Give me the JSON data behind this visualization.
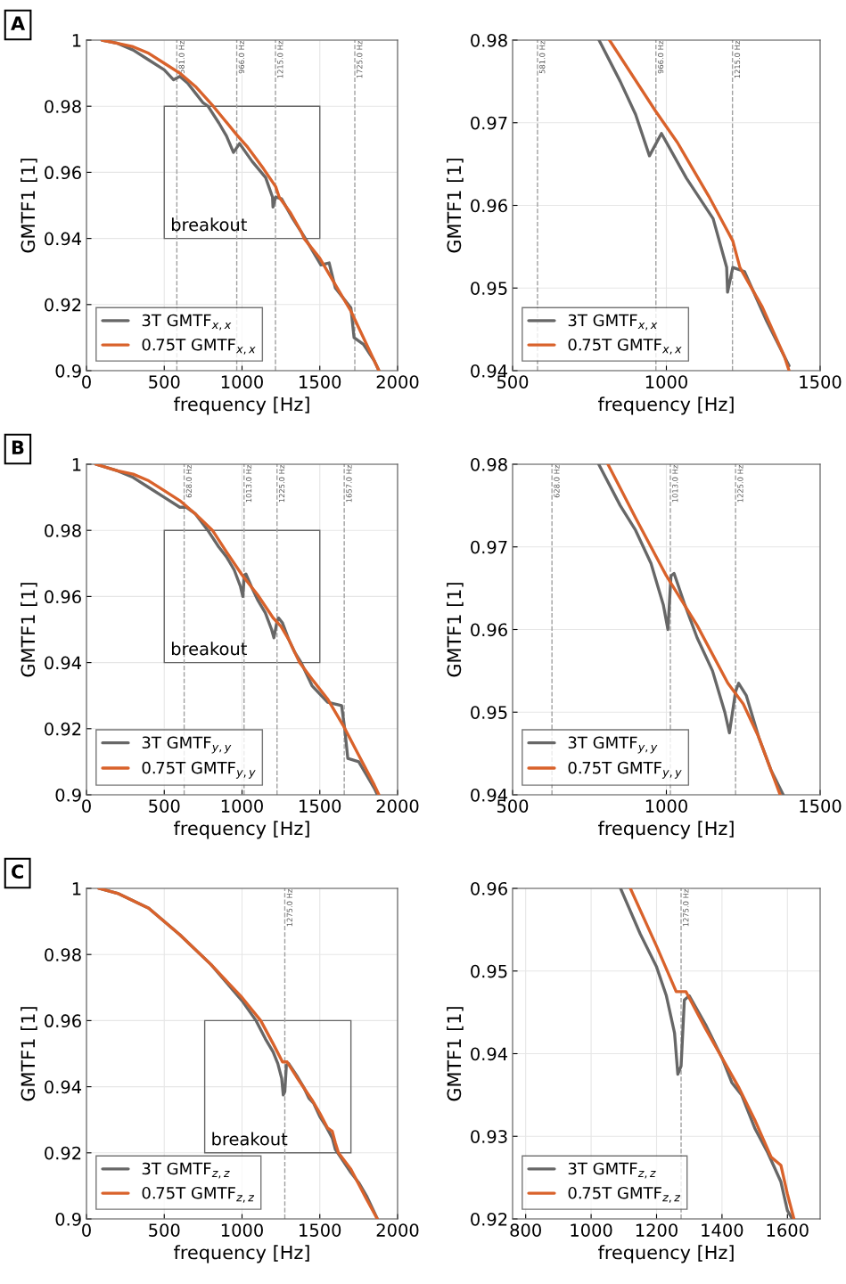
{
  "chart_data": [
    {
      "type": "line",
      "xlabel": "frequency [Hz]",
      "ylabel": "GMTF1 [1]",
      "xlim": [
        0,
        2000
      ],
      "ylim": [
        0.9,
        1
      ],
      "xticks": [
        0,
        500,
        1000,
        1500,
        2000
      ],
      "yticks": [
        0.9,
        0.92,
        0.94,
        0.96,
        0.98,
        1
      ],
      "grid": true,
      "legend": "bottom left",
      "line_style": "solid",
      "marker": "none",
      "annotations": [
        "A",
        "breakout"
      ],
      "ref_lines": [
        {
          "axis": "x",
          "value": 581,
          "label": "581.0 Hz",
          "color": "#a0a0a0",
          "line_style": "dashed"
        },
        {
          "axis": "x",
          "value": 966,
          "label": "966.0 Hz",
          "color": "#a0a0a0",
          "line_style": "dashed"
        },
        {
          "axis": "x",
          "value": 1215,
          "label": "1215.0 Hz",
          "color": "#a0a0a0",
          "line_style": "dashed"
        },
        {
          "axis": "x",
          "value": 1725,
          "label": "1725.0 Hz",
          "color": "#a0a0a0",
          "line_style": "dashed"
        }
      ],
      "series": [
        {
          "name": "3T GMTF$_{x,x}$",
          "color": "#676767",
          "x": [
            100,
            200,
            300,
            400,
            500,
            560,
            600,
            650,
            700,
            750,
            781,
            850,
            900,
            945,
            984,
            1065,
            1152,
            1196,
            1199,
            1216,
            1254,
            1326,
            1399,
            1507,
            1560,
            1600,
            1700,
            1720,
            1780,
            1850,
            1880
          ],
          "values": [
            1,
            0.999,
            0.997,
            0.994,
            0.991,
            0.988,
            0.989,
            0.987,
            0.984,
            0.981,
            0.98,
            0.975,
            0.971,
            0.966,
            0.9687,
            0.9633,
            0.9584,
            0.9525,
            0.9495,
            0.9525,
            0.952,
            0.946,
            0.9406,
            0.932,
            0.9326,
            0.925,
            0.919,
            0.91,
            0.908,
            0.903,
            0.9
          ]
        },
        {
          "name": "0.75T GMTF$_{x,x}$",
          "color": "#d9622b",
          "x": [
            100,
            200,
            300,
            400,
            500,
            600,
            700,
            815,
            965,
            1036,
            1138,
            1216,
            1239,
            1312,
            1384,
            1399,
            1500,
            1600,
            1700,
            1800,
            1880
          ],
          "values": [
            1,
            0.999,
            0.998,
            0.996,
            0.993,
            0.99,
            0.986,
            0.98,
            0.9714,
            0.9676,
            0.9611,
            0.9557,
            0.9525,
            0.9477,
            0.9417,
            0.94,
            0.934,
            0.926,
            0.918,
            0.908,
            0.9
          ]
        }
      ]
    },
    {
      "type": "line",
      "xlabel": "frequency [Hz]",
      "ylabel": "GMTF1 [1]",
      "xlim": [
        500,
        1500
      ],
      "ylim": [
        0.94,
        0.98
      ],
      "xticks": [
        500,
        1000,
        1500
      ],
      "yticks": [
        0.94,
        0.95,
        0.96,
        0.97,
        0.98
      ],
      "grid": true,
      "legend": "bottom left",
      "line_style": "solid",
      "marker": "none",
      "ref_lines": [
        {
          "axis": "x",
          "value": 581,
          "label": "581.0 Hz",
          "color": "#a0a0a0",
          "line_style": "dashed"
        },
        {
          "axis": "x",
          "value": 966,
          "label": "966.0 Hz",
          "color": "#a0a0a0",
          "line_style": "dashed"
        },
        {
          "axis": "x",
          "value": 1215,
          "label": "1215.0 Hz",
          "color": "#a0a0a0",
          "line_style": "dashed"
        }
      ],
      "series": [
        {
          "name": "3T GMTF$_{x,x}$",
          "color": "#676767",
          "x": [
            781,
            850,
            900,
            945,
            984,
            1065,
            1152,
            1196,
            1199,
            1216,
            1254,
            1326,
            1399
          ],
          "values": [
            0.98,
            0.975,
            0.971,
            0.966,
            0.9687,
            0.9633,
            0.9584,
            0.9525,
            0.9495,
            0.9525,
            0.952,
            0.946,
            0.9406
          ]
        },
        {
          "name": "0.75T GMTF$_{x,x}$",
          "color": "#d9622b",
          "x": [
            815,
            965,
            1036,
            1138,
            1216,
            1239,
            1312,
            1384,
            1399
          ],
          "values": [
            0.98,
            0.9714,
            0.9676,
            0.9611,
            0.9557,
            0.9525,
            0.9477,
            0.9417,
            0.94
          ]
        }
      ]
    },
    {
      "type": "line",
      "xlabel": "frequency [Hz]",
      "ylabel": "GMTF1 [1]",
      "xlim": [
        0,
        2000
      ],
      "ylim": [
        0.9,
        1
      ],
      "xticks": [
        0,
        500,
        1000,
        1500,
        2000
      ],
      "yticks": [
        0.9,
        0.92,
        0.94,
        0.96,
        0.98,
        1
      ],
      "grid": true,
      "legend": "bottom left",
      "line_style": "solid",
      "marker": "none",
      "annotations": [
        "B",
        "breakout"
      ],
      "ref_lines": [
        {
          "axis": "x",
          "value": 628,
          "label": "628.0 Hz",
          "color": "#a0a0a0",
          "line_style": "dashed"
        },
        {
          "axis": "x",
          "value": 1013,
          "label": "1013.0 Hz",
          "color": "#a0a0a0",
          "line_style": "dashed"
        },
        {
          "axis": "x",
          "value": 1225,
          "label": "1225.0 Hz",
          "color": "#a0a0a0",
          "line_style": "dashed"
        },
        {
          "axis": "x",
          "value": 1657,
          "label": "1657.0 Hz",
          "color": "#a0a0a0",
          "line_style": "dashed"
        }
      ],
      "series": [
        {
          "name": "3T GMTF$_{y,y}$",
          "color": "#676767",
          "x": [
            60,
            200,
            300,
            400,
            500,
            600,
            640,
            700,
            780,
            850,
            900,
            950,
            990,
            1005,
            1015,
            1025,
            1060,
            1100,
            1150,
            1190,
            1205,
            1225,
            1235,
            1260,
            1300,
            1340,
            1380,
            1450,
            1550,
            1640,
            1660,
            1680,
            1750,
            1800,
            1850,
            1870
          ],
          "values": [
            1,
            0.998,
            0.996,
            0.993,
            0.99,
            0.987,
            0.987,
            0.985,
            0.98,
            0.975,
            0.972,
            0.968,
            0.963,
            0.96,
            0.9665,
            0.9668,
            0.963,
            0.959,
            0.955,
            0.95,
            0.9475,
            0.9525,
            0.9535,
            0.952,
            0.947,
            0.943,
            0.94,
            0.933,
            0.928,
            0.927,
            0.92,
            0.911,
            0.91,
            0.906,
            0.902,
            0.9
          ]
        },
        {
          "name": "0.75T GMTF$_{y,y}$",
          "color": "#d9622b",
          "x": [
            60,
            200,
            300,
            400,
            500,
            600,
            700,
            810,
            900,
            1000,
            1100,
            1200,
            1250,
            1300,
            1370,
            1450,
            1550,
            1650,
            1750,
            1850,
            1880
          ],
          "values": [
            1,
            0.998,
            0.997,
            0.995,
            0.992,
            0.989,
            0.985,
            0.98,
            0.9735,
            0.9665,
            0.9605,
            0.9535,
            0.951,
            0.947,
            0.94,
            0.935,
            0.929,
            0.921,
            0.912,
            0.903,
            0.9
          ]
        }
      ]
    },
    {
      "type": "line",
      "xlabel": "frequency [Hz]",
      "ylabel": "GMTF1 [1]",
      "xlim": [
        500,
        1500
      ],
      "ylim": [
        0.94,
        0.98
      ],
      "xticks": [
        500,
        1000,
        1500
      ],
      "yticks": [
        0.94,
        0.95,
        0.96,
        0.97,
        0.98
      ],
      "grid": true,
      "legend": "bottom left",
      "line_style": "solid",
      "marker": "none",
      "ref_lines": [
        {
          "axis": "x",
          "value": 628,
          "label": "628.0 Hz",
          "color": "#a0a0a0",
          "line_style": "dashed"
        },
        {
          "axis": "x",
          "value": 1013,
          "label": "1013.0 Hz",
          "color": "#a0a0a0",
          "line_style": "dashed"
        },
        {
          "axis": "x",
          "value": 1225,
          "label": "1225.0 Hz",
          "color": "#a0a0a0",
          "line_style": "dashed"
        }
      ],
      "series": [
        {
          "name": "3T GMTF$_{y,y}$",
          "color": "#676767",
          "x": [
            780,
            850,
            900,
            950,
            990,
            1005,
            1015,
            1025,
            1060,
            1100,
            1150,
            1190,
            1205,
            1225,
            1235,
            1260,
            1300,
            1340,
            1380
          ],
          "values": [
            0.98,
            0.975,
            0.972,
            0.968,
            0.963,
            0.96,
            0.9665,
            0.9668,
            0.963,
            0.959,
            0.955,
            0.95,
            0.9475,
            0.9525,
            0.9535,
            0.952,
            0.947,
            0.943,
            0.94
          ]
        },
        {
          "name": "0.75T GMTF$_{y,y}$",
          "color": "#d9622b",
          "x": [
            810,
            900,
            1000,
            1100,
            1200,
            1250,
            1300,
            1370
          ],
          "values": [
            0.98,
            0.9735,
            0.9665,
            0.9605,
            0.9535,
            0.951,
            0.947,
            0.94
          ]
        }
      ]
    },
    {
      "type": "line",
      "xlabel": "frequency [Hz]",
      "ylabel": "GMTF1 [1]",
      "xlim": [
        0,
        2000
      ],
      "ylim": [
        0.9,
        1
      ],
      "xticks": [
        0,
        500,
        1000,
        1500,
        2000
      ],
      "yticks": [
        0.9,
        0.92,
        0.94,
        0.96,
        0.98,
        1
      ],
      "grid": true,
      "legend": "bottom left",
      "line_style": "solid",
      "marker": "none",
      "annotations": [
        "C",
        "breakout"
      ],
      "ref_lines": [
        {
          "axis": "x",
          "value": 1275,
          "label": "1275.0 Hz",
          "color": "#a0a0a0",
          "line_style": "dashed"
        }
      ],
      "series": [
        {
          "name": "3T GMTF$_{z,z}$",
          "color": "#676767",
          "x": [
            80,
            200,
            400,
            600,
            800,
            1000,
            1090,
            1150,
            1200,
            1230,
            1255,
            1265,
            1275,
            1285,
            1300,
            1350,
            1400,
            1430,
            1460,
            1500,
            1540,
            1580,
            1600,
            1615,
            1700,
            1750,
            1800,
            1850,
            1870
          ],
          "values": [
            1,
            0.9985,
            0.994,
            0.986,
            0.977,
            0.966,
            0.96,
            0.9545,
            0.9505,
            0.947,
            0.9425,
            0.9375,
            0.9385,
            0.9465,
            0.947,
            0.9435,
            0.9395,
            0.9365,
            0.935,
            0.931,
            0.928,
            0.9245,
            0.921,
            0.92,
            0.914,
            0.911,
            0.907,
            0.902,
            0.9
          ]
        },
        {
          "name": "0.75T GMTF$_{z,z}$",
          "color": "#d9622b",
          "x": [
            80,
            200,
            400,
            600,
            800,
            1000,
            1120,
            1200,
            1260,
            1290,
            1350,
            1400,
            1450,
            1500,
            1550,
            1580,
            1600,
            1620,
            1700,
            1800,
            1870
          ],
          "values": [
            1,
            0.9985,
            0.994,
            0.986,
            0.977,
            0.967,
            0.96,
            0.953,
            0.9475,
            0.9475,
            0.943,
            0.9395,
            0.936,
            0.932,
            0.9275,
            0.9265,
            0.923,
            0.92,
            0.915,
            0.906,
            0.9
          ]
        }
      ]
    },
    {
      "type": "line",
      "xlabel": "frequency [Hz]",
      "ylabel": "GMTF1 [1]",
      "xlim": [
        760,
        1700
      ],
      "ylim": [
        0.92,
        0.96
      ],
      "xticks": [
        800,
        1000,
        1200,
        1400,
        1600
      ],
      "yticks": [
        0.92,
        0.93,
        0.94,
        0.95,
        0.96
      ],
      "grid": true,
      "legend": "bottom left",
      "line_style": "solid",
      "marker": "none",
      "ref_lines": [
        {
          "axis": "x",
          "value": 1275,
          "label": "1275.0 Hz",
          "color": "#a0a0a0",
          "line_style": "dashed"
        }
      ],
      "series": [
        {
          "name": "3T GMTF$_{z,z}$",
          "color": "#676767",
          "x": [
            1090,
            1150,
            1200,
            1230,
            1255,
            1265,
            1275,
            1285,
            1300,
            1350,
            1400,
            1430,
            1460,
            1500,
            1540,
            1580,
            1600,
            1615
          ],
          "values": [
            0.96,
            0.9545,
            0.9505,
            0.947,
            0.9425,
            0.9375,
            0.9385,
            0.9465,
            0.947,
            0.9435,
            0.9395,
            0.9365,
            0.935,
            0.931,
            0.928,
            0.9245,
            0.921,
            0.92
          ]
        },
        {
          "name": "0.75T GMTF$_{z,z}$",
          "color": "#d9622b",
          "x": [
            1120,
            1200,
            1260,
            1290,
            1350,
            1400,
            1450,
            1500,
            1550,
            1580,
            1600,
            1620
          ],
          "values": [
            0.96,
            0.953,
            0.9475,
            0.9475,
            0.943,
            0.9395,
            0.936,
            0.932,
            0.9275,
            0.9265,
            0.923,
            0.92
          ]
        }
      ]
    }
  ]
}
